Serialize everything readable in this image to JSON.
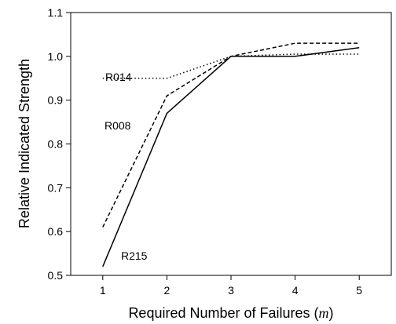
{
  "chart_data": {
    "type": "line",
    "title": "",
    "xlabel_main": "Required Number of Failures (",
    "xlabel_var": "m",
    "xlabel_close": ")",
    "ylabel": "Relative Indicated Strength",
    "xlim": [
      0.5,
      5.5
    ],
    "ylim": [
      0.5,
      1.1
    ],
    "x_ticks": [
      1,
      2,
      3,
      4,
      5
    ],
    "x_tick_labels": [
      "1",
      "2",
      "3",
      "4",
      "5"
    ],
    "y_ticks": [
      0.5,
      0.6,
      0.7,
      0.8,
      0.9,
      1.0,
      1.1
    ],
    "y_tick_labels": [
      "0.5",
      "0.6",
      "0.7",
      "0.8",
      "0.9",
      "1.0",
      "1.1"
    ],
    "grid": false,
    "x": [
      1,
      2,
      3,
      4,
      5
    ],
    "series": [
      {
        "name": "R014",
        "style": "dotted",
        "values": [
          0.95,
          0.95,
          1.0,
          1.005,
          1.005
        ]
      },
      {
        "name": "R008",
        "style": "dashed",
        "values": [
          0.61,
          0.91,
          1.0,
          1.03,
          1.03
        ]
      },
      {
        "name": "R215",
        "style": "solid",
        "values": [
          0.52,
          0.87,
          1.0,
          1.0,
          1.02
        ]
      }
    ],
    "colors": {
      "line": "#000000",
      "axis": "#000000",
      "background": "#ffffff"
    }
  }
}
